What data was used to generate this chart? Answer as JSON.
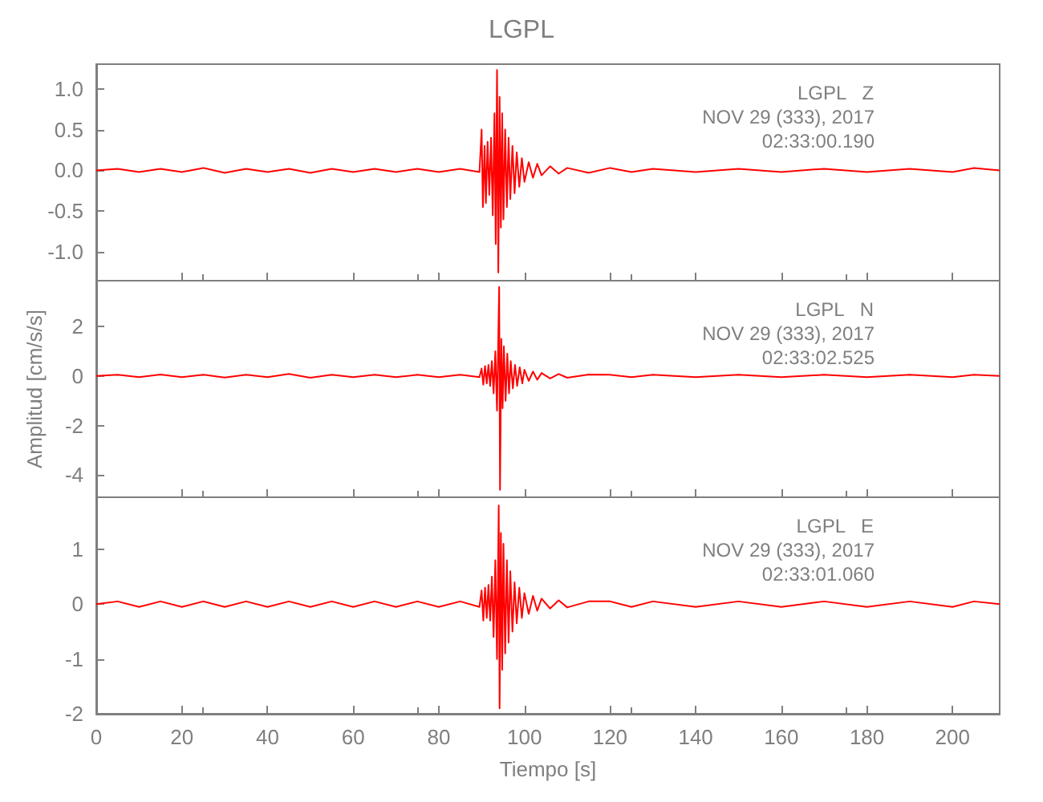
{
  "chart_data": [
    {
      "type": "line",
      "title": "LGPL",
      "xlim": [
        0,
        211
      ],
      "xticks": [
        0,
        20,
        40,
        60,
        80,
        100,
        120,
        140,
        160,
        180,
        200
      ],
      "ylim": [
        -1.35,
        1.3
      ],
      "yticks": [
        {
          "value": -1,
          "label": "-1.0"
        },
        {
          "value": -0.5,
          "label": "-0.5"
        },
        {
          "value": 0,
          "label": "0.0"
        },
        {
          "value": 0.5,
          "label": "0.5"
        },
        {
          "value": 1,
          "label": "1.0"
        }
      ],
      "tick_labels": "y",
      "grid": false,
      "annotations": [
        "LGPL   Z",
        "NOV 29 (333), 2017",
        "02:33:00.190"
      ],
      "series": [
        {
          "color": "#ff0000",
          "x": [
            0,
            5,
            10,
            15,
            20,
            25,
            30,
            35,
            40,
            45,
            50,
            55,
            60,
            65,
            70,
            75,
            80,
            85,
            89.5,
            90,
            90.3,
            90.7,
            91,
            91.4,
            91.8,
            92.2,
            92.6,
            93,
            93.3,
            93.6,
            93.9,
            94.2,
            94.5,
            94.8,
            95.1,
            95.5,
            95.9,
            96.3,
            96.7,
            97.2,
            97.7,
            98.2,
            98.8,
            99.4,
            100,
            101,
            102,
            103,
            104,
            106,
            108,
            110,
            115,
            120,
            125,
            130,
            140,
            150,
            160,
            170,
            180,
            190,
            200,
            205,
            211
          ],
          "values": [
            0,
            0.02,
            -0.02,
            0.02,
            -0.02,
            0.03,
            -0.03,
            0.02,
            -0.02,
            0.02,
            -0.03,
            0.02,
            -0.02,
            0.02,
            -0.02,
            0.02,
            -0.02,
            0.02,
            -0.02,
            0.5,
            -0.45,
            0.3,
            -0.4,
            0.35,
            -0.3,
            0.4,
            -0.55,
            0.7,
            -0.9,
            1.23,
            -1.25,
            0.9,
            -0.7,
            0.7,
            -0.6,
            0.5,
            -0.45,
            0.4,
            -0.35,
            0.3,
            -0.28,
            0.22,
            -0.2,
            0.15,
            -0.14,
            0.1,
            -0.09,
            0.08,
            -0.06,
            0.05,
            -0.04,
            0.03,
            -0.03,
            0.03,
            -0.02,
            0.02,
            -0.02,
            0.02,
            -0.02,
            0.02,
            -0.02,
            0.02,
            -0.02,
            0.03,
            0
          ]
        }
      ]
    },
    {
      "type": "line",
      "ylabel": "Amplitud [cm/s/s]",
      "xlim": [
        0,
        211
      ],
      "xticks": [
        0,
        20,
        40,
        60,
        80,
        100,
        120,
        140,
        160,
        180,
        200
      ],
      "ylim": [
        -4.9,
        3.85
      ],
      "yticks": [
        -4,
        -2,
        0,
        2
      ],
      "tick_labels": "y",
      "grid": false,
      "annotations": [
        "LGPL   N",
        "NOV 29 (333), 2017",
        "02:33:02.525"
      ],
      "series": [
        {
          "color": "#ff0000",
          "x": [
            0,
            5,
            10,
            15,
            20,
            25,
            30,
            35,
            40,
            45,
            50,
            55,
            60,
            65,
            70,
            75,
            80,
            85,
            89.5,
            90,
            90.4,
            90.8,
            91.2,
            91.6,
            92,
            92.4,
            92.8,
            93.2,
            93.6,
            94.1,
            94.3,
            94.6,
            94.9,
            95.2,
            95.6,
            96,
            96.4,
            96.8,
            97.3,
            97.8,
            98.3,
            98.9,
            99.5,
            100,
            101,
            102,
            103,
            104,
            106,
            108,
            110,
            115,
            120,
            125,
            130,
            140,
            150,
            160,
            170,
            180,
            190,
            200,
            205,
            211
          ],
          "values": [
            0,
            0.05,
            -0.05,
            0.06,
            -0.05,
            0.05,
            -0.06,
            0.05,
            -0.05,
            0.08,
            -0.07,
            0.05,
            -0.05,
            0.05,
            -0.05,
            0.05,
            -0.05,
            0.05,
            -0.05,
            0.3,
            -0.35,
            0.4,
            -0.3,
            0.45,
            -0.4,
            0.6,
            -0.7,
            1,
            -1.4,
            3.6,
            -4.6,
            1.5,
            -1.3,
            1.2,
            -1,
            0.9,
            -0.7,
            0.6,
            -0.5,
            0.45,
            -0.4,
            0.35,
            -0.3,
            0.25,
            -0.2,
            0.18,
            -0.15,
            0.12,
            -0.1,
            0.08,
            -0.07,
            0.06,
            0.05,
            -0.05,
            0.05,
            -0.05,
            0.05,
            -0.05,
            0.05,
            -0.05,
            0.05,
            -0.05,
            0.05,
            0
          ]
        }
      ]
    },
    {
      "type": "line",
      "xlabel": "Tiempo [s]",
      "xlim": [
        0,
        211
      ],
      "xticks": [
        0,
        20,
        40,
        60,
        80,
        100,
        120,
        140,
        160,
        180,
        200
      ],
      "ylim": [
        -2,
        1.95
      ],
      "yticks": [
        -2,
        -1,
        0,
        1
      ],
      "grid": false,
      "annotations": [
        "LGPL   E",
        "NOV 29 (333), 2017",
        "02:33:01.060"
      ],
      "series": [
        {
          "color": "#ff0000",
          "x": [
            0,
            5,
            10,
            15,
            20,
            25,
            30,
            35,
            40,
            45,
            50,
            55,
            60,
            65,
            70,
            75,
            80,
            85,
            89.5,
            90,
            90.4,
            90.8,
            91.2,
            91.6,
            92,
            92.4,
            92.8,
            93.2,
            93.6,
            94,
            94.2,
            94.5,
            94.8,
            95.1,
            95.5,
            95.9,
            96.3,
            96.7,
            97.2,
            97.7,
            98.2,
            98.8,
            99.4,
            100,
            101,
            102,
            103,
            104,
            106,
            108,
            110,
            115,
            120,
            125,
            130,
            140,
            150,
            160,
            170,
            180,
            190,
            200,
            205,
            211
          ],
          "values": [
            0,
            0.05,
            -0.05,
            0.05,
            -0.05,
            0.05,
            -0.05,
            0.05,
            -0.05,
            0.05,
            -0.05,
            0.05,
            -0.05,
            0.05,
            -0.05,
            0.05,
            -0.05,
            0.05,
            -0.05,
            0.25,
            -0.3,
            0.3,
            -0.25,
            0.35,
            -0.3,
            0.5,
            -0.6,
            0.8,
            -1,
            1.8,
            -1.9,
            1.3,
            -1.2,
            1.1,
            -0.9,
            0.8,
            -0.7,
            0.6,
            -0.5,
            0.4,
            -0.35,
            0.3,
            -0.25,
            0.2,
            -0.18,
            0.15,
            -0.12,
            0.1,
            -0.08,
            0.07,
            -0.06,
            0.05,
            0.05,
            -0.05,
            0.05,
            -0.05,
            0.05,
            -0.05,
            0.05,
            -0.05,
            0.05,
            -0.05,
            0.05,
            0
          ]
        }
      ]
    }
  ]
}
